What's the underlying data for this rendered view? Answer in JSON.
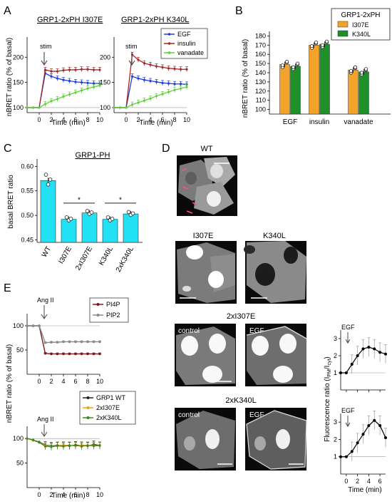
{
  "panels": {
    "A": {
      "letter": "A",
      "left_title": "GRP1-2xPH I307E",
      "right_title": "GRP1-2xPH K340L",
      "ylabel": "nBRET ratio (% of basal)",
      "xlabel": "Time (min)",
      "stim": "stim",
      "legend": [
        "EGF",
        "insulin",
        "vanadate"
      ],
      "y_ticks": [
        "100",
        "150",
        "200"
      ],
      "x_ticks": [
        "0",
        "2",
        "4",
        "6",
        "8",
        "10"
      ]
    },
    "B": {
      "letter": "B",
      "legend_title": "GRP1-2xPH",
      "legend": [
        "I307E",
        "K340L"
      ],
      "ylabel": "nBRET ratio (% of basal)",
      "y_ticks": [
        "100",
        "110",
        "120",
        "130",
        "140",
        "150",
        "160",
        "170",
        "180"
      ],
      "categories": [
        "EGF",
        "insulin",
        "vanadate"
      ]
    },
    "C": {
      "letter": "C",
      "title": "GRP1-PH",
      "ylabel": "basal BRET ratio",
      "y_ticks": [
        "0.45",
        "0.50",
        "0.55",
        "0.60"
      ],
      "categories": [
        "WT",
        "I307E",
        "2xI307E",
        "K340L",
        "2xK340L"
      ],
      "sig": [
        "*",
        "*"
      ]
    },
    "D": {
      "letter": "D",
      "wt": "WT",
      "i307e": "I307E",
      "k340l": "K340L",
      "two_i": "2xI307E",
      "two_k": "2xK340L",
      "control": "control",
      "egf": "EGF",
      "ylabel_pre": "Fluorescence ratio (I",
      "ylabel_pm": "PM",
      "ylabel_mid": "/I",
      "ylabel_cyt": "cyt",
      "ylabel_post": ")",
      "xlabel": "Time (min)",
      "y_ticks": [
        "1",
        "2",
        "3"
      ],
      "x_ticks": [
        "0",
        "2",
        "4",
        "6"
      ],
      "arrow_label": "EGF"
    },
    "E": {
      "letter": "E",
      "ang": "Ang II",
      "legend_top": [
        "PI4P",
        "PIP2"
      ],
      "legend_bottom": [
        "GRP1 WT",
        "2xI307E",
        "2xK340L"
      ],
      "ylabel": "nBRET ratio (% of basal)",
      "xlabel": "Time (min)",
      "y_ticks": [
        "50",
        "100"
      ],
      "x_ticks": [
        "0",
        "2",
        "4",
        "6",
        "8",
        "10"
      ]
    }
  },
  "colors": {
    "egf": "#1f3fd6",
    "insulin": "#a4282a",
    "vanadate": "#5fd13a",
    "orange": "#f3a32a",
    "green": "#1f8f2a",
    "cyan": "#22e1f5",
    "pi4p": "#7a1a1a",
    "pip2": "#8a8a8a",
    "wt_dark": "#222222",
    "i307e_orange": "#e8a418",
    "k340l_green": "#3a8a1a"
  },
  "chart_data": [
    {
      "type": "line",
      "title": "GRP1-2xPH I307E",
      "xlabel": "Time (min)",
      "ylabel": "nBRET ratio (% of basal)",
      "xlim": [
        -2,
        10
      ],
      "ylim": [
        90,
        240
      ],
      "x": [
        -2,
        -1,
        0,
        1,
        2,
        3,
        4,
        5,
        6,
        7,
        8,
        9,
        10
      ],
      "series": [
        {
          "name": "EGF",
          "values": [
            100,
            100,
            100,
            168,
            162,
            158,
            155,
            153,
            151,
            150,
            149,
            148,
            148
          ]
        },
        {
          "name": "insulin",
          "values": [
            100,
            100,
            100,
            175,
            172,
            172,
            174,
            175,
            175,
            176,
            176,
            175,
            175
          ]
        },
        {
          "name": "vanadate",
          "values": [
            100,
            100,
            100,
            107,
            113,
            117,
            122,
            126,
            130,
            134,
            138,
            141,
            144
          ]
        }
      ]
    },
    {
      "type": "line",
      "title": "GRP1-2xPH K340L",
      "xlabel": "Time (min)",
      "ylabel": "nBRET ratio (% of basal)",
      "xlim": [
        -2,
        10
      ],
      "ylim": [
        90,
        240
      ],
      "x": [
        -2,
        -1,
        0,
        1,
        2,
        3,
        4,
        5,
        6,
        7,
        8,
        9,
        10
      ],
      "series": [
        {
          "name": "EGF",
          "values": [
            100,
            100,
            100,
            162,
            158,
            155,
            153,
            151,
            149,
            148,
            147,
            147,
            146
          ]
        },
        {
          "name": "insulin",
          "values": [
            100,
            100,
            100,
            205,
            195,
            188,
            185,
            182,
            180,
            178,
            177,
            176,
            176
          ]
        },
        {
          "name": "vanadate",
          "values": [
            100,
            100,
            100,
            106,
            110,
            114,
            118,
            123,
            127,
            131,
            135,
            138,
            141
          ]
        }
      ]
    },
    {
      "type": "bar",
      "ylabel": "nBRET ratio (% of basal)",
      "ylim": [
        95,
        185
      ],
      "categories": [
        "EGF",
        "insulin",
        "vanadate"
      ],
      "series": [
        {
          "name": "I307E",
          "values": [
            149,
            170,
            143
          ]
        },
        {
          "name": "K340L",
          "values": [
            147,
            171,
            141
          ]
        }
      ],
      "legend_title": "GRP1-2xPH"
    },
    {
      "type": "bar",
      "title": "GRP1-PH",
      "ylabel": "basal BRET ratio",
      "ylim": [
        0.445,
        0.615
      ],
      "categories": [
        "WT",
        "I307E",
        "2xI307E",
        "K340L",
        "2xK340L"
      ],
      "values": [
        0.571,
        0.492,
        0.505,
        0.492,
        0.503
      ]
    },
    {
      "type": "line",
      "xlabel": "Time (min)",
      "ylabel": "Fluorescence ratio (IPM/Icyt)",
      "xlim": [
        -1,
        7
      ],
      "ylim": [
        0,
        3.5
      ],
      "x": [
        -1,
        0,
        1,
        2,
        3,
        4,
        5,
        6,
        7
      ],
      "values": [
        1.0,
        1.0,
        1.5,
        2.0,
        2.4,
        2.5,
        2.4,
        2.2,
        2.1
      ]
    },
    {
      "type": "line",
      "xlabel": "Time (min)",
      "ylabel": "Fluorescence ratio (IPM/Icyt)",
      "xlim": [
        -1,
        7
      ],
      "ylim": [
        0,
        3.5
      ],
      "x": [
        -1,
        0,
        1,
        2,
        3,
        4,
        5,
        6,
        7
      ],
      "values": [
        1.0,
        1.0,
        1.3,
        1.8,
        2.3,
        2.8,
        3.1,
        2.8,
        2.1
      ]
    },
    {
      "type": "line",
      "xlabel": "Time (min)",
      "ylabel": "nBRET ratio (% of basal)",
      "xlim": [
        -2,
        10
      ],
      "ylim": [
        0,
        125
      ],
      "x": [
        -2,
        -1,
        0,
        1,
        2,
        3,
        4,
        5,
        6,
        7,
        8,
        9,
        10
      ],
      "series": [
        {
          "name": "PI4P",
          "values": [
            100,
            100,
            100,
            43,
            42,
            42,
            42,
            42,
            42,
            42,
            42,
            42,
            42
          ]
        },
        {
          "name": "PIP2",
          "values": [
            100,
            100,
            100,
            65,
            66,
            66,
            67,
            67,
            67,
            67,
            67,
            67,
            67
          ]
        }
      ]
    },
    {
      "type": "line",
      "xlabel": "Time (min)",
      "ylabel": "nBRET ratio (% of basal)",
      "xlim": [
        -2,
        10
      ],
      "ylim": [
        0,
        125
      ],
      "x": [
        -2,
        -1,
        0,
        1,
        2,
        3,
        4,
        5,
        6,
        7,
        8,
        9,
        10
      ],
      "series": [
        {
          "name": "GRP1 WT",
          "values": [
            100,
            97,
            93,
            87,
            85,
            86,
            86,
            85,
            87,
            86,
            85,
            88,
            86
          ]
        },
        {
          "name": "2xI307E",
          "values": [
            100,
            96,
            92,
            86,
            84,
            85,
            87,
            86,
            85,
            87,
            86,
            86,
            85
          ]
        },
        {
          "name": "2xK340L",
          "values": [
            100,
            97,
            92,
            84,
            83,
            85,
            84,
            86,
            86,
            84,
            86,
            85,
            86
          ]
        }
      ]
    }
  ]
}
